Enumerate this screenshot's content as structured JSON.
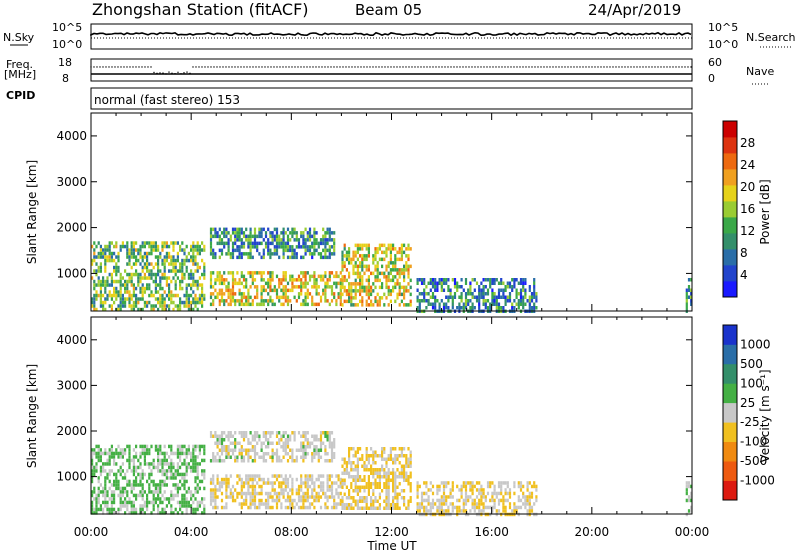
{
  "header": {
    "station": "Zhongshan Station (fitACF)",
    "beam": "Beam 05",
    "date": "24/Apr/2019"
  },
  "top_panels": {
    "nsky_label": "N.Sky",
    "nsky_ticks": [
      "10^5",
      "10^0"
    ],
    "nsearch_label": "N.Search",
    "nsearch_ticks": [
      "10^5",
      "10^0"
    ],
    "freq_label": "Freq.",
    "freq_unit": "[MHz]",
    "freq_ticks": [
      "18",
      "8"
    ],
    "nave_label": "Nave",
    "nave_ticks": [
      "60",
      "0"
    ],
    "cpid_label": "CPID",
    "cpid_text": "normal (fast stereo) 153"
  },
  "axes": {
    "xlabel": "Time UT",
    "xticks": [
      "00:00",
      "04:00",
      "08:00",
      "12:00",
      "16:00",
      "20:00",
      "00:00"
    ],
    "ylabel": "Slant Range [km]",
    "yticks": [
      "1000",
      "2000",
      "3000",
      "4000"
    ]
  },
  "colorbars": {
    "power": {
      "label": "Power [dB]",
      "ticks": [
        "4",
        "8",
        "12",
        "16",
        "20",
        "24",
        "28"
      ],
      "colors": [
        "#1a1aff",
        "#2244cc",
        "#2a6ea8",
        "#338f6a",
        "#3aa848",
        "#9acc33",
        "#e6d21a",
        "#f0a020",
        "#ee6a10",
        "#dd3310",
        "#cc0000"
      ]
    },
    "velocity": {
      "label": "Velocity [m s⁻¹]",
      "ticks": [
        "1000",
        "500",
        "100",
        "25",
        "-25",
        "-100",
        "-500",
        "-1000"
      ],
      "colors": [
        "#1a33cc",
        "#2a6ea8",
        "#338f6a",
        "#44b044",
        "#c8c8c8",
        "#f0c020",
        "#f08a10",
        "#ee5a10",
        "#dd1a10"
      ]
    }
  },
  "chart_data": [
    {
      "type": "heatmap",
      "title": "",
      "xlabel": "Time UT",
      "ylabel": "Slant Range [km]",
      "colorbar_label": "Power [dB]",
      "xlim": [
        "00:00",
        "24:00"
      ],
      "ylim": [
        180,
        4500
      ],
      "clim": [
        0,
        32
      ],
      "features": [
        {
          "time_start": "00:00",
          "time_end": "04:30",
          "range_start": 200,
          "range_end": 1700,
          "typical_value": 14
        },
        {
          "time_start": "04:45",
          "time_end": "10:00",
          "range_start": 300,
          "range_end": 1050,
          "typical_value": 18
        },
        {
          "time_start": "04:45",
          "time_end": "09:45",
          "range_start": 1350,
          "range_end": 2000,
          "typical_value": 10
        },
        {
          "time_start": "10:00",
          "time_end": "12:45",
          "range_start": 300,
          "range_end": 1650,
          "typical_value": 18
        },
        {
          "time_start": "13:00",
          "time_end": "17:45",
          "range_start": 200,
          "range_end": 900,
          "typical_value": 9
        },
        {
          "time_start": "23:45",
          "time_end": "24:00",
          "range_start": 200,
          "range_end": 900,
          "typical_value": 10
        }
      ]
    },
    {
      "type": "heatmap",
      "title": "",
      "xlabel": "Time UT",
      "ylabel": "Slant Range [km]",
      "colorbar_label": "Velocity [m s⁻¹]",
      "xlim": [
        "00:00",
        "24:00"
      ],
      "ylim": [
        180,
        4500
      ],
      "clim": [
        -1000,
        1000
      ],
      "features": [
        {
          "time_start": "00:00",
          "time_end": "04:30",
          "range_start": 200,
          "range_end": 1700,
          "typical_value": 150
        },
        {
          "time_start": "04:45",
          "time_end": "10:00",
          "range_start": 300,
          "range_end": 1050,
          "typical_value": -80
        },
        {
          "time_start": "04:45",
          "time_end": "09:45",
          "range_start": 1350,
          "range_end": 2000,
          "typical_value": 0
        },
        {
          "time_start": "10:00",
          "time_end": "12:45",
          "range_start": 300,
          "range_end": 1650,
          "typical_value": -150
        },
        {
          "time_start": "13:00",
          "time_end": "17:45",
          "range_start": 200,
          "range_end": 900,
          "typical_value": -100
        },
        {
          "time_start": "23:45",
          "time_end": "24:00",
          "range_start": 200,
          "range_end": 900,
          "typical_value": 60
        }
      ]
    }
  ]
}
